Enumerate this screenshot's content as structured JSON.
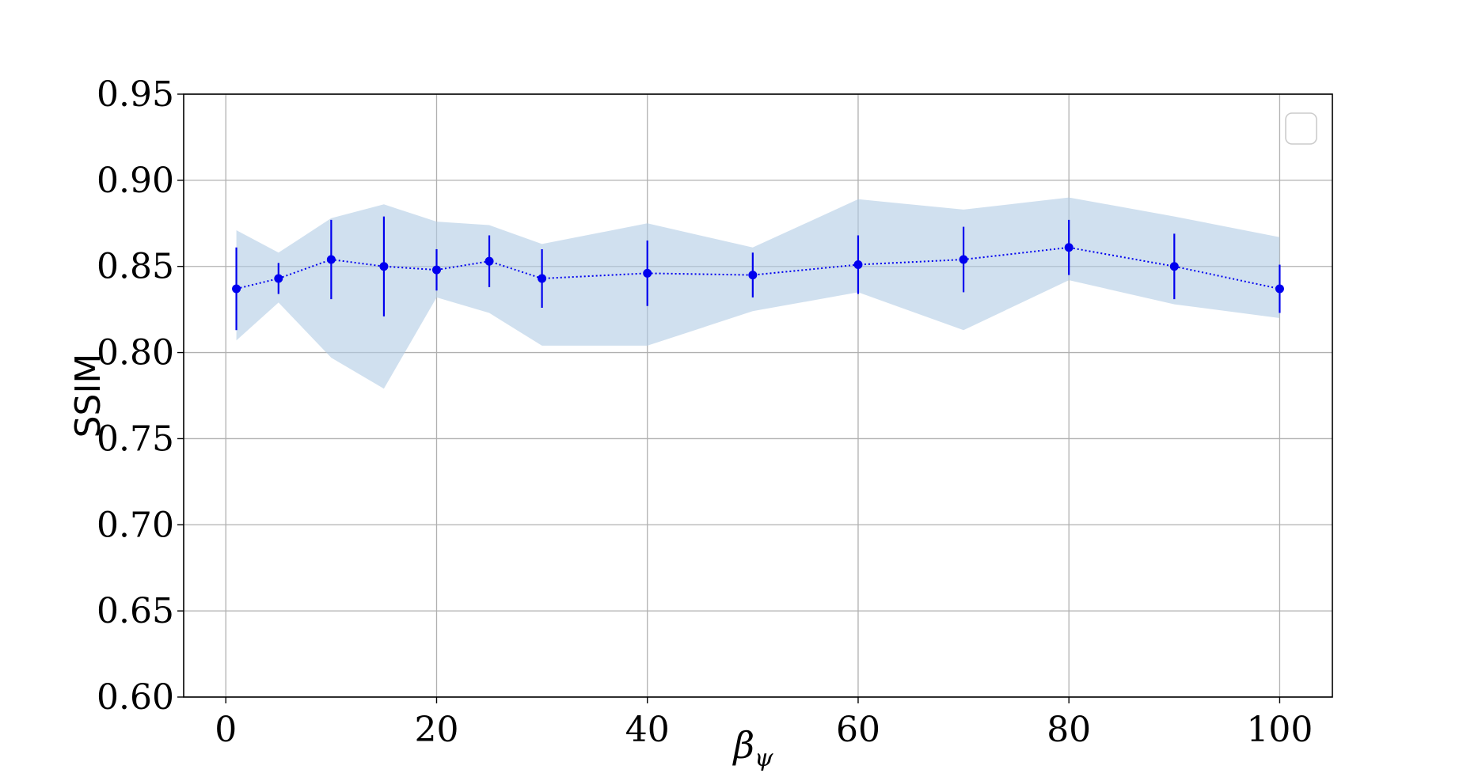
{
  "chart_data": {
    "type": "line",
    "xlabel": "β",
    "xlabel_subscript": "ψ",
    "ylabel": "SSIM",
    "xlim": [
      -4,
      105
    ],
    "ylim": [
      0.6,
      0.95
    ],
    "xticks": [
      "0",
      "20",
      "40",
      "60",
      "80",
      "100"
    ],
    "yticks": [
      "0.60",
      "0.65",
      "0.70",
      "0.75",
      "0.80",
      "0.85",
      "0.90",
      "0.95"
    ],
    "grid": true,
    "legend": "top-right (empty)",
    "series": [
      {
        "x": [
          1,
          5,
          10,
          15,
          20,
          25,
          30,
          40,
          50,
          60,
          70,
          80,
          90,
          100
        ],
        "y": [
          0.837,
          0.843,
          0.854,
          0.85,
          0.848,
          0.853,
          0.843,
          0.846,
          0.845,
          0.851,
          0.854,
          0.861,
          0.85,
          0.837
        ],
        "yerr": [
          0.024,
          0.009,
          0.023,
          0.029,
          0.012,
          0.015,
          0.017,
          0.019,
          0.013,
          0.017,
          0.019,
          0.016,
          0.019,
          0.014
        ],
        "band_upper": [
          0.871,
          0.858,
          0.878,
          0.886,
          0.876,
          0.874,
          0.863,
          0.875,
          0.861,
          0.889,
          0.883,
          0.89,
          0.879,
          0.867
        ],
        "band_lower": [
          0.807,
          0.829,
          0.797,
          0.779,
          0.832,
          0.823,
          0.804,
          0.804,
          0.824,
          0.835,
          0.813,
          0.842,
          0.828,
          0.82
        ]
      }
    ]
  },
  "colors": {
    "line": "#0000ee",
    "band": "#b0cce4",
    "grid": "#b0b0b0",
    "legend_border": "#cccccc"
  }
}
